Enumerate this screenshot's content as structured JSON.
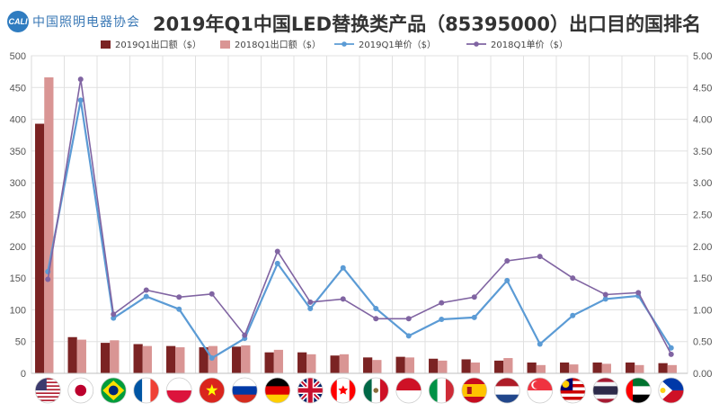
{
  "header": {
    "logo_mark": "CALI",
    "logo_text": "中国照明电器协会",
    "title": "2019年Q1中国LED替换类产品（85395000）出口目的国排名"
  },
  "chart_data": {
    "type": "bar",
    "title": "2019年Q1中国LED替换类产品（85395000）出口目的国排名",
    "categories": [
      "United States",
      "Japan",
      "Brazil",
      "France",
      "Poland",
      "Vietnam",
      "Russia",
      "Germany",
      "United Kingdom",
      "Canada",
      "Mexico",
      "Indonesia",
      "Italy",
      "Spain",
      "Netherlands",
      "Singapore",
      "Malaysia",
      "Thailand",
      "UAE",
      "Philippines"
    ],
    "category_icons": [
      "flag-us",
      "flag-jp",
      "flag-br",
      "flag-fr",
      "flag-pl",
      "flag-vn",
      "flag-ru",
      "flag-de",
      "flag-gb",
      "flag-ca",
      "flag-mx",
      "flag-id",
      "flag-it",
      "flag-es",
      "flag-nl",
      "flag-sg",
      "flag-my",
      "flag-th",
      "flag-ae",
      "flag-ph"
    ],
    "y_left_ticks": [
      "0",
      "50",
      "100",
      "150",
      "200",
      "250",
      "300",
      "350",
      "400",
      "450",
      "500"
    ],
    "y_right_ticks": [
      "0.00",
      "0.50",
      "1.00",
      "1.50",
      "2.00",
      "2.50",
      "3.00",
      "3.50",
      "4.00",
      "4.50",
      "5.00"
    ],
    "ylim_left": [
      0,
      500
    ],
    "ylim_right": [
      0,
      5
    ],
    "legend_position": "top",
    "grid": true,
    "series": [
      {
        "name": "2019Q1出口额（$）",
        "kind": "bar",
        "axis": "left",
        "color": "#7b2323",
        "values": [
          393,
          57,
          48,
          46,
          43,
          41,
          42,
          33,
          33,
          28,
          25,
          26,
          23,
          22,
          20,
          17,
          17,
          17,
          17,
          16
        ]
      },
      {
        "name": "2018Q1出口额（$）",
        "kind": "bar",
        "axis": "left",
        "color": "#d99594",
        "values": [
          466,
          53,
          52,
          43,
          41,
          43,
          44,
          37,
          30,
          30,
          21,
          25,
          20,
          17,
          24,
          13,
          14,
          15,
          13,
          13
        ]
      },
      {
        "name": "2019Q1单价（$）",
        "kind": "line",
        "axis": "right",
        "color": "#5b9bd5",
        "values": [
          1.6,
          4.3,
          0.87,
          1.21,
          1.01,
          0.24,
          0.55,
          1.73,
          1.02,
          1.66,
          1.02,
          0.59,
          0.85,
          0.88,
          1.46,
          0.46,
          0.91,
          1.17,
          1.22,
          0.4
        ]
      },
      {
        "name": "2018Q1单价（$）",
        "kind": "line",
        "axis": "right",
        "color": "#8064a2",
        "values": [
          1.48,
          4.63,
          0.93,
          1.31,
          1.2,
          1.25,
          0.6,
          1.92,
          1.12,
          1.17,
          0.86,
          0.86,
          1.11,
          1.2,
          1.77,
          1.84,
          1.5,
          1.24,
          1.27,
          0.3
        ]
      }
    ]
  }
}
